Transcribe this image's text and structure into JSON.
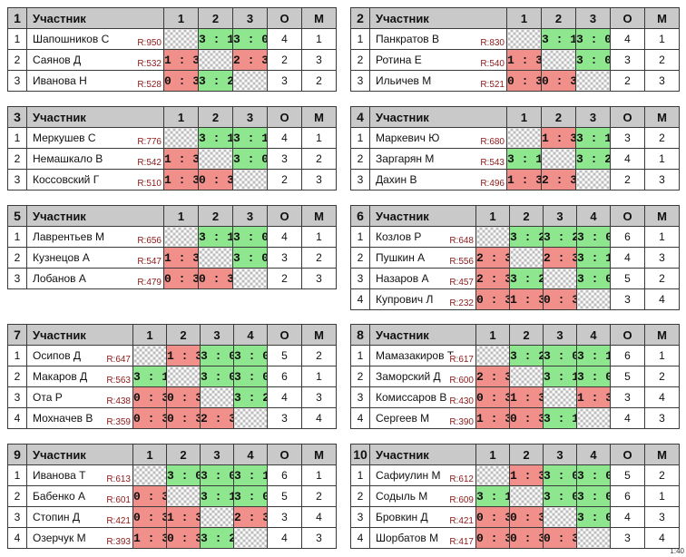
{
  "headers": {
    "participant": "Участник",
    "points": "О",
    "place": "М"
  },
  "colors": {
    "win": "#8ee68e",
    "loss": "#f1908a",
    "header": "#c9c9c9",
    "rating": "#8b1a1a"
  },
  "footnote": "1:40",
  "groups": [
    {
      "number": "1",
      "cols": [
        "1",
        "2",
        "3"
      ],
      "rows": [
        {
          "n": "1",
          "name": "Шапошников С",
          "rating": "R:950",
          "results": [
            "",
            "3 : 1",
            "3 : 0"
          ],
          "points": "4",
          "place": "1"
        },
        {
          "n": "2",
          "name": "Саянов Д",
          "rating": "R:532",
          "results": [
            "1 : 3",
            "",
            "2 : 3"
          ],
          "points": "2",
          "place": "3"
        },
        {
          "n": "3",
          "name": "Иванова Н",
          "rating": "R:528",
          "results": [
            "0 : 3",
            "3 : 2",
            ""
          ],
          "points": "3",
          "place": "2"
        }
      ]
    },
    {
      "number": "2",
      "cols": [
        "1",
        "2",
        "3"
      ],
      "rows": [
        {
          "n": "1",
          "name": "Панкратов В",
          "rating": "R:830",
          "results": [
            "",
            "3 : 1",
            "3 : 0"
          ],
          "points": "4",
          "place": "1"
        },
        {
          "n": "2",
          "name": "Ротина Е",
          "rating": "R:540",
          "results": [
            "1 : 3",
            "",
            "3 : 0"
          ],
          "points": "3",
          "place": "2"
        },
        {
          "n": "3",
          "name": "Ильичев М",
          "rating": "R:521",
          "results": [
            "0 : 3",
            "0 : 3",
            ""
          ],
          "points": "2",
          "place": "3"
        }
      ]
    },
    {
      "number": "3",
      "cols": [
        "1",
        "2",
        "3"
      ],
      "rows": [
        {
          "n": "1",
          "name": "Меркушев С",
          "rating": "R:776",
          "results": [
            "",
            "3 : 1",
            "3 : 1"
          ],
          "points": "4",
          "place": "1"
        },
        {
          "n": "2",
          "name": "Немашкало В",
          "rating": "R:542",
          "results": [
            "1 : 3",
            "",
            "3 : 0"
          ],
          "points": "3",
          "place": "2"
        },
        {
          "n": "3",
          "name": "Коссовский Г",
          "rating": "R:510",
          "results": [
            "1 : 3",
            "0 : 3",
            ""
          ],
          "points": "2",
          "place": "3"
        }
      ]
    },
    {
      "number": "4",
      "cols": [
        "1",
        "2",
        "3"
      ],
      "rows": [
        {
          "n": "1",
          "name": "Маркевич Ю",
          "rating": "R:680",
          "results": [
            "",
            "1 : 3",
            "3 : 1"
          ],
          "points": "3",
          "place": "2"
        },
        {
          "n": "2",
          "name": "Заргарян М",
          "rating": "R:543",
          "results": [
            "3 : 1",
            "",
            "3 : 2"
          ],
          "points": "4",
          "place": "1"
        },
        {
          "n": "3",
          "name": "Дахин В",
          "rating": "R:496",
          "results": [
            "1 : 3",
            "2 : 3",
            ""
          ],
          "points": "2",
          "place": "3"
        }
      ]
    },
    {
      "number": "5",
      "cols": [
        "1",
        "2",
        "3"
      ],
      "rows": [
        {
          "n": "1",
          "name": "Лаврентьев М",
          "rating": "R:656",
          "results": [
            "",
            "3 : 1",
            "3 : 0"
          ],
          "points": "4",
          "place": "1"
        },
        {
          "n": "2",
          "name": "Кузнецов А",
          "rating": "R:547",
          "results": [
            "1 : 3",
            "",
            "3 : 0"
          ],
          "points": "3",
          "place": "2"
        },
        {
          "n": "3",
          "name": "Лобанов А",
          "rating": "R:479",
          "results": [
            "0 : 3",
            "0 : 3",
            ""
          ],
          "points": "2",
          "place": "3"
        }
      ]
    },
    {
      "number": "6",
      "cols": [
        "1",
        "2",
        "3",
        "4"
      ],
      "rows": [
        {
          "n": "1",
          "name": "Козлов Р",
          "rating": "R:648",
          "results": [
            "",
            "3 : 2",
            "3 : 2",
            "3 : 0"
          ],
          "points": "6",
          "place": "1"
        },
        {
          "n": "2",
          "name": "Пушкин А",
          "rating": "R:556",
          "results": [
            "2 : 3",
            "",
            "2 : 3",
            "3 : 1"
          ],
          "points": "4",
          "place": "3"
        },
        {
          "n": "3",
          "name": "Назаров А",
          "rating": "R:457",
          "results": [
            "2 : 3",
            "3 : 2",
            "",
            "3 : 0"
          ],
          "points": "5",
          "place": "2"
        },
        {
          "n": "4",
          "name": "Купрович Л",
          "rating": "R:232",
          "results": [
            "0 : 3",
            "1 : 3",
            "0 : 3",
            ""
          ],
          "points": "3",
          "place": "4"
        }
      ]
    },
    {
      "number": "7",
      "cols": [
        "1",
        "2",
        "3",
        "4"
      ],
      "rows": [
        {
          "n": "1",
          "name": "Осипов Д",
          "rating": "R:647",
          "results": [
            "",
            "1 : 3",
            "3 : 0",
            "3 : 0"
          ],
          "points": "5",
          "place": "2"
        },
        {
          "n": "2",
          "name": "Макаров Д",
          "rating": "R:563",
          "results": [
            "3 : 1",
            "",
            "3 : 0",
            "3 : 0"
          ],
          "points": "6",
          "place": "1"
        },
        {
          "n": "3",
          "name": "Ота Р",
          "rating": "R:438",
          "results": [
            "0 : 3",
            "0 : 3",
            "",
            "3 : 2"
          ],
          "points": "4",
          "place": "3"
        },
        {
          "n": "4",
          "name": "Мохначев В",
          "rating": "R:359",
          "results": [
            "0 : 3",
            "0 : 3",
            "2 : 3",
            ""
          ],
          "points": "3",
          "place": "4"
        }
      ]
    },
    {
      "number": "8",
      "cols": [
        "1",
        "2",
        "3",
        "4"
      ],
      "rows": [
        {
          "n": "1",
          "name": "Мамазакиров Т",
          "rating": "R:617",
          "results": [
            "",
            "3 : 2",
            "3 : 0",
            "3 : 1"
          ],
          "points": "6",
          "place": "1"
        },
        {
          "n": "2",
          "name": "Заморский Д",
          "rating": "R:600",
          "results": [
            "2 : 3",
            "",
            "3 : 1",
            "3 : 0"
          ],
          "points": "5",
          "place": "2"
        },
        {
          "n": "3",
          "name": "Комиссаров В",
          "rating": "R:430",
          "results": [
            "0 : 3",
            "1 : 3",
            "",
            "1 : 3"
          ],
          "points": "3",
          "place": "4"
        },
        {
          "n": "4",
          "name": "Сергеев М",
          "rating": "R:390",
          "results": [
            "1 : 3",
            "0 : 3",
            "3 : 1",
            ""
          ],
          "points": "4",
          "place": "3"
        }
      ]
    },
    {
      "number": "9",
      "cols": [
        "1",
        "2",
        "3",
        "4"
      ],
      "rows": [
        {
          "n": "1",
          "name": "Иванова Т",
          "rating": "R:613",
          "results": [
            "",
            "3 : 0",
            "3 : 0",
            "3 : 1"
          ],
          "points": "6",
          "place": "1"
        },
        {
          "n": "2",
          "name": "Бабенко А",
          "rating": "R:601",
          "results": [
            "0 : 3",
            "",
            "3 : 1",
            "3 : 0"
          ],
          "points": "5",
          "place": "2"
        },
        {
          "n": "3",
          "name": "Стопин Д",
          "rating": "R:421",
          "results": [
            "0 : 3",
            "1 : 3",
            "",
            "2 : 3"
          ],
          "points": "3",
          "place": "4"
        },
        {
          "n": "4",
          "name": "Озерчук М",
          "rating": "R:393",
          "results": [
            "1 : 3",
            "0 : 3",
            "3 : 2",
            ""
          ],
          "points": "4",
          "place": "3"
        }
      ]
    },
    {
      "number": "10",
      "cols": [
        "1",
        "2",
        "3",
        "4"
      ],
      "rows": [
        {
          "n": "1",
          "name": "Сафиулин М",
          "rating": "R:612",
          "results": [
            "",
            "1 : 3",
            "3 : 0",
            "3 : 0"
          ],
          "points": "5",
          "place": "2"
        },
        {
          "n": "2",
          "name": "Содыль М",
          "rating": "R:609",
          "results": [
            "3 : 1",
            "",
            "3 : 0",
            "3 : 0"
          ],
          "points": "6",
          "place": "1"
        },
        {
          "n": "3",
          "name": "Бровкин Д",
          "rating": "R:421",
          "results": [
            "0 : 3",
            "0 : 3",
            "",
            "3 : 0"
          ],
          "points": "4",
          "place": "3"
        },
        {
          "n": "4",
          "name": "Шорбатов М",
          "rating": "R:417",
          "results": [
            "0 : 3",
            "0 : 3",
            "0 : 3",
            ""
          ],
          "points": "3",
          "place": "4"
        }
      ]
    }
  ]
}
